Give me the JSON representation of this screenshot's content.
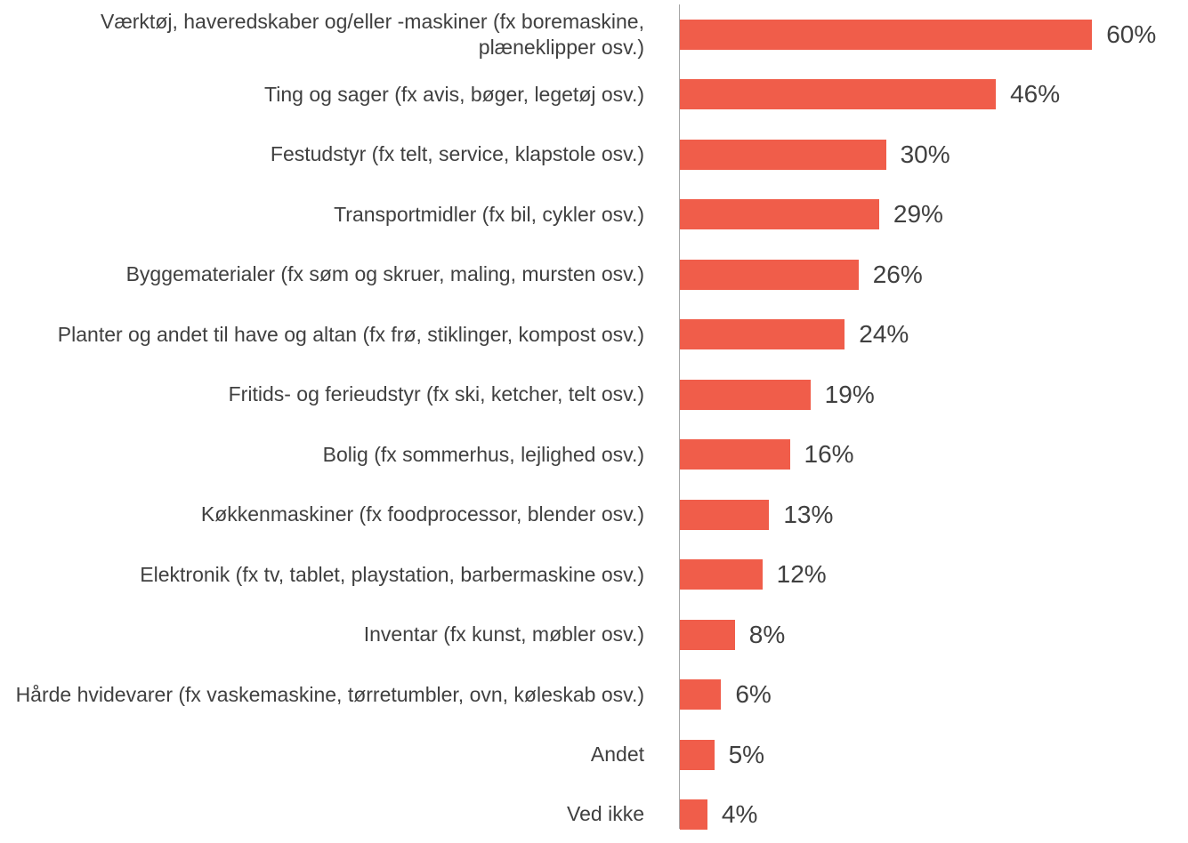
{
  "chart_data": {
    "type": "bar",
    "orientation": "horizontal",
    "color": "#f05d4a",
    "categories": [
      "Værktøj, haveredskaber og/eller -maskiner (fx boremaskine, plæneklipper osv.)",
      "Ting og sager (fx avis, bøger, legetøj osv.)",
      "Festudstyr (fx telt, service, klapstole osv.)",
      "Transportmidler (fx bil, cykler osv.)",
      "Byggematerialer (fx søm og skruer, maling, mursten osv.)",
      "Planter og andet til have og altan (fx frø, stiklinger, kompost osv.)",
      "Fritids- og ferieudstyr (fx ski, ketcher, telt osv.)",
      "Bolig (fx sommerhus, lejlighed osv.)",
      "Køkkenmaskiner (fx foodprocessor, blender osv.)",
      "Elektronik (fx tv, tablet, playstation, barbermaskine osv.)",
      "Inventar (fx kunst, møbler osv.)",
      "Hårde hvidevarer (fx vaskemaskine, tørretumbler, ovn, køleskab osv.)",
      "Andet",
      "Ved ikke"
    ],
    "values": [
      60,
      46,
      30,
      29,
      26,
      24,
      19,
      16,
      13,
      12,
      8,
      6,
      5,
      4
    ],
    "value_labels": [
      "60%",
      "46%",
      "30%",
      "29%",
      "26%",
      "24%",
      "19%",
      "16%",
      "13%",
      "12%",
      "8%",
      "6%",
      "5%",
      "4%"
    ]
  }
}
